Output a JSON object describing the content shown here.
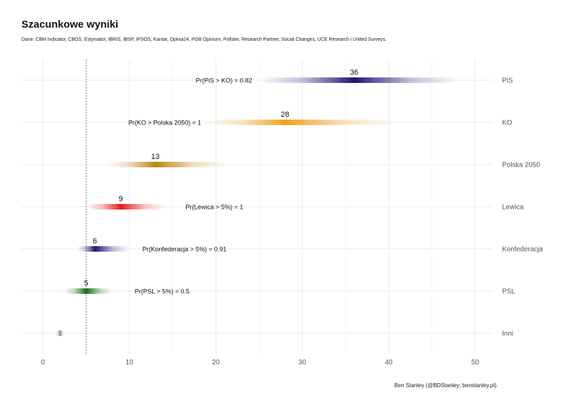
{
  "title": "Szacunkowe wyniki",
  "subtitle": "Dane: CBM Indicator, CBOS, Estymator, IBRIS, IBSP, IPSOS, Kantar, Opinia24, PGB Opinium, Pollster, Research Partner, Social Changes, UCE Research i United Surveys.",
  "caption": "Ben Stanley (@BDStanley; benstanley.pl).",
  "chart_data": {
    "type": "interval",
    "xlim": [
      -2.5,
      52
    ],
    "x_ticks": [
      0,
      10,
      20,
      30,
      40,
      50
    ],
    "threshold": 5,
    "grid": true,
    "parties": [
      {
        "name": "PiS",
        "estimate": 36,
        "label": "36",
        "low": 25,
        "high": 48,
        "color": "#1f1472"
      },
      {
        "name": "KO",
        "estimate": 28,
        "label": "28",
        "low": 19,
        "high": 41,
        "color": "#f0a11a"
      },
      {
        "name": "Polska 2050",
        "estimate": 13,
        "label": "13",
        "low": 7.5,
        "high": 21,
        "color": "#b8860b"
      },
      {
        "name": "Lewica",
        "estimate": 9,
        "label": "9",
        "low": 5,
        "high": 14,
        "color": "#e81616"
      },
      {
        "name": "Konfederacja",
        "estimate": 6,
        "label": "6",
        "low": 4,
        "high": 10,
        "color": "#1f1472"
      },
      {
        "name": "PSL",
        "estimate": 5,
        "label": "5",
        "low": 2.5,
        "high": 8,
        "color": "#1a6b12"
      },
      {
        "name": "Inni",
        "estimate": 2,
        "label": "",
        "low": 1.5,
        "high": 2.4,
        "color": "#8a8a8a"
      }
    ],
    "annotations": [
      {
        "party": "PiS",
        "text": "Pr(PiS > KO)  =  0.82",
        "x": 24.2,
        "anchor": "end"
      },
      {
        "party": "KO",
        "text": "Pr(KO > Polska 2050)  =  1",
        "x": 18.3,
        "anchor": "end"
      },
      {
        "party": "Lewica",
        "text": "Pr(Lewica > 5%)  =  1",
        "x": 16.5,
        "anchor": "start"
      },
      {
        "party": "Konfederacja",
        "text": "Pr(Konfederacja > 5%)  =  0.91",
        "x": 11.5,
        "anchor": "start"
      },
      {
        "party": "PSL",
        "text": "Pr(PSL > 5%)  =  0.5",
        "x": 10.6,
        "anchor": "start"
      }
    ]
  }
}
